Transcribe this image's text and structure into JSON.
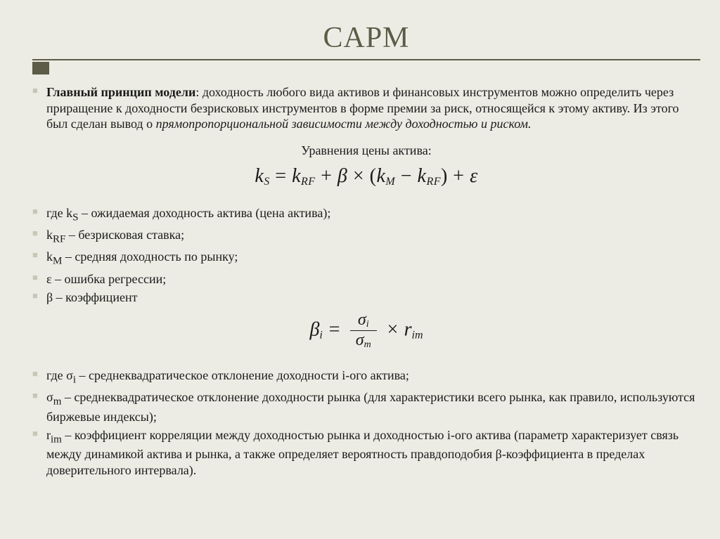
{
  "colors": {
    "background": "#ecece4",
    "title": "#5c5c47",
    "rule": "#5c5c47",
    "accent_box": "#5c5c47",
    "bullet": "#c7c7b8",
    "text": "#1a1a1a"
  },
  "typography": {
    "title_fontsize": 42,
    "body_fontsize": 18,
    "equation_fontsize": 28,
    "font_family": "Times New Roman"
  },
  "title": "CAPM",
  "principle": {
    "label": "Главный принцип модели",
    "text": ": доходность любого вида активов и финансовых инструментов можно определить через приращение к доходности безрисковых инструментов в форме премии за риск, относящейся к этому активу. Из этого был сделан вывод о ",
    "italic_tail": "прямопропорциональной зависимости между доходностью и риском."
  },
  "eq_caption": "Уравнения цены актива:",
  "equation1": {
    "plain": "k_S = k_RF + β × (k_M − k_RF) + ε"
  },
  "defs1": [
    "где kS – ожидаемая доходность актива (цена актива);",
    "kRF – безрисковая ставка;",
    "kM – средняя доходность по рынку;",
    "ε – ошибка регрессии;",
    "β – коэффициент"
  ],
  "equation2": {
    "plain": "β_i = σ_i / σ_m × r_im"
  },
  "defs2": [
    "где σi – среднеквадратическое отклонение доходности i-ого актива;",
    "σm – среднеквадратическое отклонение доходности рынка (для характеристики всего рынка, как правило, используются биржевые индексы);",
    "rim – коэффициент корреляции между доходностью рынка и доходностью i-ого актива (параметр характеризует связь между динамикой актива и рынка, а также определяет вероятность правдоподобия β-коэффициента в пределах доверительного интервала)."
  ]
}
